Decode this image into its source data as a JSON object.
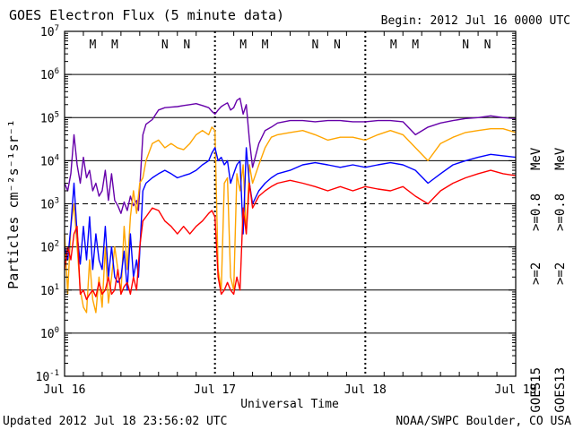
{
  "header": {
    "title": "GOES Electron Flux (5 minute data)",
    "begin": "Begin: 2012 Jul 16 0000 UTC"
  },
  "footer": {
    "updated": "Updated 2012 Jul 18 23:56:02 UTC",
    "credit": "NOAA/SWPC Boulder, CO USA"
  },
  "colors": {
    "purple": "#6600aa",
    "orange": "#ffa500",
    "blue": "#0000ff",
    "red": "#ff0000",
    "magnetopause_M": "#ff0000",
    "magnetopause_N": "#0000cc"
  },
  "chart_data": {
    "type": "line",
    "title": "GOES Electron Flux (5 minute data)",
    "xlabel": "Universal Time",
    "ylabel": "Particles cm⁻²s⁻¹sr⁻¹",
    "yscale": "log",
    "ylim": [
      0.1,
      10000000
    ],
    "xlim": [
      0,
      72
    ],
    "x_units": "hours since 2012 Jul 16 0000 UTC",
    "x_ticks": [
      {
        "x": 0,
        "label": "Jul 16"
      },
      {
        "x": 24,
        "label": "Jul 17"
      },
      {
        "x": 48,
        "label": "Jul 18"
      },
      {
        "x": 72,
        "label": "Jul 19"
      }
    ],
    "y_ticks": [
      {
        "exp": -1,
        "base": "10",
        "sup": "-1"
      },
      {
        "exp": 0,
        "base": "10",
        "sup": "0"
      },
      {
        "exp": 1,
        "base": "10",
        "sup": "1"
      },
      {
        "exp": 2,
        "base": "10",
        "sup": "2"
      },
      {
        "exp": 3,
        "base": "10",
        "sup": "3"
      },
      {
        "exp": 4,
        "base": "10",
        "sup": "4"
      },
      {
        "exp": 5,
        "base": "10",
        "sup": "5"
      },
      {
        "exp": 6,
        "base": "10",
        "sup": "6"
      },
      {
        "exp": 7,
        "base": "10",
        "sup": "7"
      }
    ],
    "grid": "solid horizontal lines at each decade; dashed line at 10^3 alert threshold",
    "legend": {
      "placement": "right, rotated vertical",
      "goes15": "GOES15",
      "goes13": "GOES13",
      "entries": [
        {
          "sat": "GOES15",
          "label": ">=0.8",
          "color": "#6600aa"
        },
        {
          "sat": "GOES15",
          "label": ">=2",
          "color": "#0000ff"
        },
        {
          "sat": "GOES13",
          "label": ">=0.8",
          "color": "#ffa500"
        },
        {
          "sat": "GOES13",
          "label": ">=2",
          "color": "#ff0000"
        }
      ],
      "unit": "MeV"
    },
    "markers": [
      {
        "x": 4.5,
        "label": "M",
        "sat": "GOES13"
      },
      {
        "x": 8.0,
        "label": "M",
        "sat": "GOES15"
      },
      {
        "x": 16.0,
        "label": "N",
        "sat": "GOES13"
      },
      {
        "x": 19.5,
        "label": "N",
        "sat": "GOES15"
      },
      {
        "x": 28.5,
        "label": "M",
        "sat": "GOES13"
      },
      {
        "x": 32.0,
        "label": "M",
        "sat": "GOES15"
      },
      {
        "x": 40.0,
        "label": "N",
        "sat": "GOES13"
      },
      {
        "x": 43.5,
        "label": "N",
        "sat": "GOES15"
      },
      {
        "x": 52.5,
        "label": "M",
        "sat": "GOES13"
      },
      {
        "x": 56.0,
        "label": "M",
        "sat": "GOES15"
      },
      {
        "x": 64.0,
        "label": "N",
        "sat": "GOES13"
      },
      {
        "x": 67.5,
        "label": "N",
        "sat": "GOES15"
      }
    ],
    "series": [
      {
        "name": "GOES15 >=0.8 MeV",
        "color": "#6600aa",
        "x": [
          0,
          0.5,
          1,
          1.5,
          2,
          2.5,
          3,
          3.5,
          4,
          4.5,
          5,
          5.5,
          6,
          6.5,
          7,
          7.5,
          8,
          8.5,
          9,
          9.5,
          10,
          10.5,
          11,
          11.5,
          11.8,
          12.5,
          13,
          14,
          15,
          16,
          17,
          18,
          19,
          20,
          21,
          22,
          23,
          23.5,
          24,
          24.5,
          25,
          25.5,
          26,
          26.5,
          27,
          27.5,
          28,
          28.5,
          29,
          29.5,
          30,
          31,
          32,
          33,
          34,
          35,
          36,
          38,
          40,
          42,
          44,
          46,
          48,
          50,
          52,
          54,
          56,
          58,
          60,
          62,
          64,
          66,
          68,
          70,
          72
        ],
        "y": [
          3000,
          2000,
          5000,
          40000,
          8000,
          3000,
          12000,
          4000,
          6000,
          2000,
          3000,
          1500,
          2000,
          6000,
          1200,
          5000,
          1200,
          900,
          600,
          1100,
          700,
          1500,
          900,
          1200,
          700,
          40000,
          70000,
          90000,
          150000,
          170000,
          175000,
          180000,
          190000,
          200000,
          210000,
          190000,
          170000,
          140000,
          120000,
          150000,
          180000,
          200000,
          220000,
          150000,
          170000,
          250000,
          280000,
          120000,
          200000,
          30000,
          7000,
          25000,
          50000,
          60000,
          75000,
          80000,
          85000,
          85000,
          80000,
          85000,
          85000,
          80000,
          80000,
          85000,
          85000,
          80000,
          40000,
          60000,
          75000,
          85000,
          95000,
          100000,
          110000,
          100000,
          95000
        ]
      },
      {
        "name": "GOES13 >=0.8 MeV",
        "color": "#ffa500",
        "x": [
          0,
          0.5,
          1,
          1.5,
          2,
          2.5,
          3,
          3.5,
          4,
          4.5,
          5,
          5.5,
          6,
          6.5,
          7,
          7.5,
          8,
          8.5,
          9,
          9.5,
          10,
          10.5,
          11,
          11.5,
          12,
          12.5,
          13,
          14,
          15,
          16,
          17,
          18,
          19,
          20,
          21,
          22,
          23,
          23.5,
          24,
          24.5,
          25,
          25.5,
          26,
          26.5,
          27,
          27.5,
          28,
          28.5,
          29,
          29.5,
          30,
          31,
          32,
          33,
          34,
          36,
          38,
          40,
          42,
          44,
          46,
          48,
          50,
          52,
          54,
          56,
          58,
          60,
          62,
          64,
          66,
          68,
          70,
          72
        ],
        "y": [
          200,
          8,
          300,
          1000,
          100,
          10,
          4,
          3,
          50,
          6,
          3,
          20,
          4,
          100,
          5,
          20,
          100,
          30,
          8,
          300,
          30,
          500,
          2000,
          600,
          3000,
          4000,
          10000,
          25000,
          30000,
          20000,
          25000,
          20000,
          18000,
          25000,
          40000,
          50000,
          40000,
          60000,
          50000,
          30,
          10,
          3000,
          4000,
          20,
          10,
          5000,
          2000,
          8000,
          200,
          8000,
          3000,
          8000,
          20000,
          35000,
          40000,
          45000,
          50000,
          40000,
          30000,
          35000,
          35000,
          30000,
          40000,
          50000,
          40000,
          20000,
          10000,
          25000,
          35000,
          45000,
          50000,
          55000,
          55000,
          45000
        ]
      },
      {
        "name": "GOES15 >=2 MeV",
        "color": "#0000ff",
        "x": [
          0,
          0.5,
          1,
          1.5,
          2,
          2.5,
          3,
          3.5,
          4,
          4.5,
          5,
          5.5,
          6,
          6.5,
          7,
          7.5,
          8,
          8.5,
          9,
          9.5,
          10,
          10.5,
          11,
          11.5,
          11.8,
          12.5,
          13,
          14,
          15,
          16,
          17,
          18,
          19,
          20,
          21,
          22,
          23,
          23.5,
          24,
          24.5,
          25,
          25.5,
          26,
          26.5,
          27,
          27.5,
          28,
          28.5,
          29,
          29.5,
          30,
          31,
          32,
          33,
          34,
          36,
          38,
          40,
          42,
          44,
          46,
          48,
          50,
          52,
          54,
          56,
          58,
          60,
          62,
          64,
          66,
          68,
          70,
          72
        ],
        "y": [
          100,
          50,
          300,
          3000,
          200,
          40,
          300,
          50,
          500,
          30,
          200,
          50,
          30,
          300,
          20,
          100,
          20,
          15,
          20,
          80,
          10,
          200,
          20,
          50,
          20,
          2000,
          3000,
          4000,
          5000,
          6000,
          5000,
          4000,
          4500,
          5000,
          6000,
          8000,
          10000,
          15000,
          20000,
          10000,
          12000,
          8000,
          10000,
          3000,
          5000,
          8000,
          10000,
          200,
          20000,
          3000,
          1000,
          2000,
          3000,
          4000,
          5000,
          6000,
          8000,
          9000,
          8000,
          7000,
          8000,
          7000,
          8000,
          9000,
          8000,
          6000,
          3000,
          5000,
          8000,
          10000,
          12000,
          14000,
          13000,
          12000
        ]
      },
      {
        "name": "GOES13 >=2 MeV",
        "color": "#ff0000",
        "x": [
          0,
          0.5,
          1,
          1.5,
          2,
          2.5,
          3,
          3.5,
          4,
          4.5,
          5,
          5.5,
          6,
          6.5,
          7,
          7.5,
          8,
          8.5,
          9,
          9.5,
          10,
          10.5,
          11,
          11.5,
          12,
          12.5,
          13,
          14,
          15,
          16,
          17,
          18,
          19,
          20,
          21,
          22,
          23,
          23.5,
          24,
          24.5,
          25,
          25.5,
          26,
          26.5,
          27,
          27.5,
          28,
          28.5,
          29,
          29.5,
          30,
          31,
          32,
          33,
          34,
          36,
          38,
          40,
          42,
          44,
          46,
          48,
          50,
          52,
          54,
          56,
          58,
          60,
          62,
          64,
          66,
          68,
          70,
          72
        ],
        "y": [
          30,
          100,
          50,
          200,
          300,
          8,
          10,
          6,
          8,
          10,
          7,
          15,
          8,
          10,
          20,
          8,
          10,
          30,
          8,
          12,
          15,
          8,
          20,
          10,
          100,
          400,
          500,
          800,
          700,
          400,
          300,
          200,
          300,
          200,
          300,
          400,
          600,
          700,
          500,
          20,
          8,
          10,
          15,
          10,
          8,
          20,
          10,
          800,
          200,
          3000,
          800,
          1500,
          2000,
          2500,
          3000,
          3500,
          3000,
          2500,
          2000,
          2500,
          2000,
          2500,
          2200,
          2000,
          2500,
          1500,
          1000,
          2000,
          3000,
          4000,
          5000,
          6000,
          5000,
          4500
        ]
      }
    ]
  }
}
